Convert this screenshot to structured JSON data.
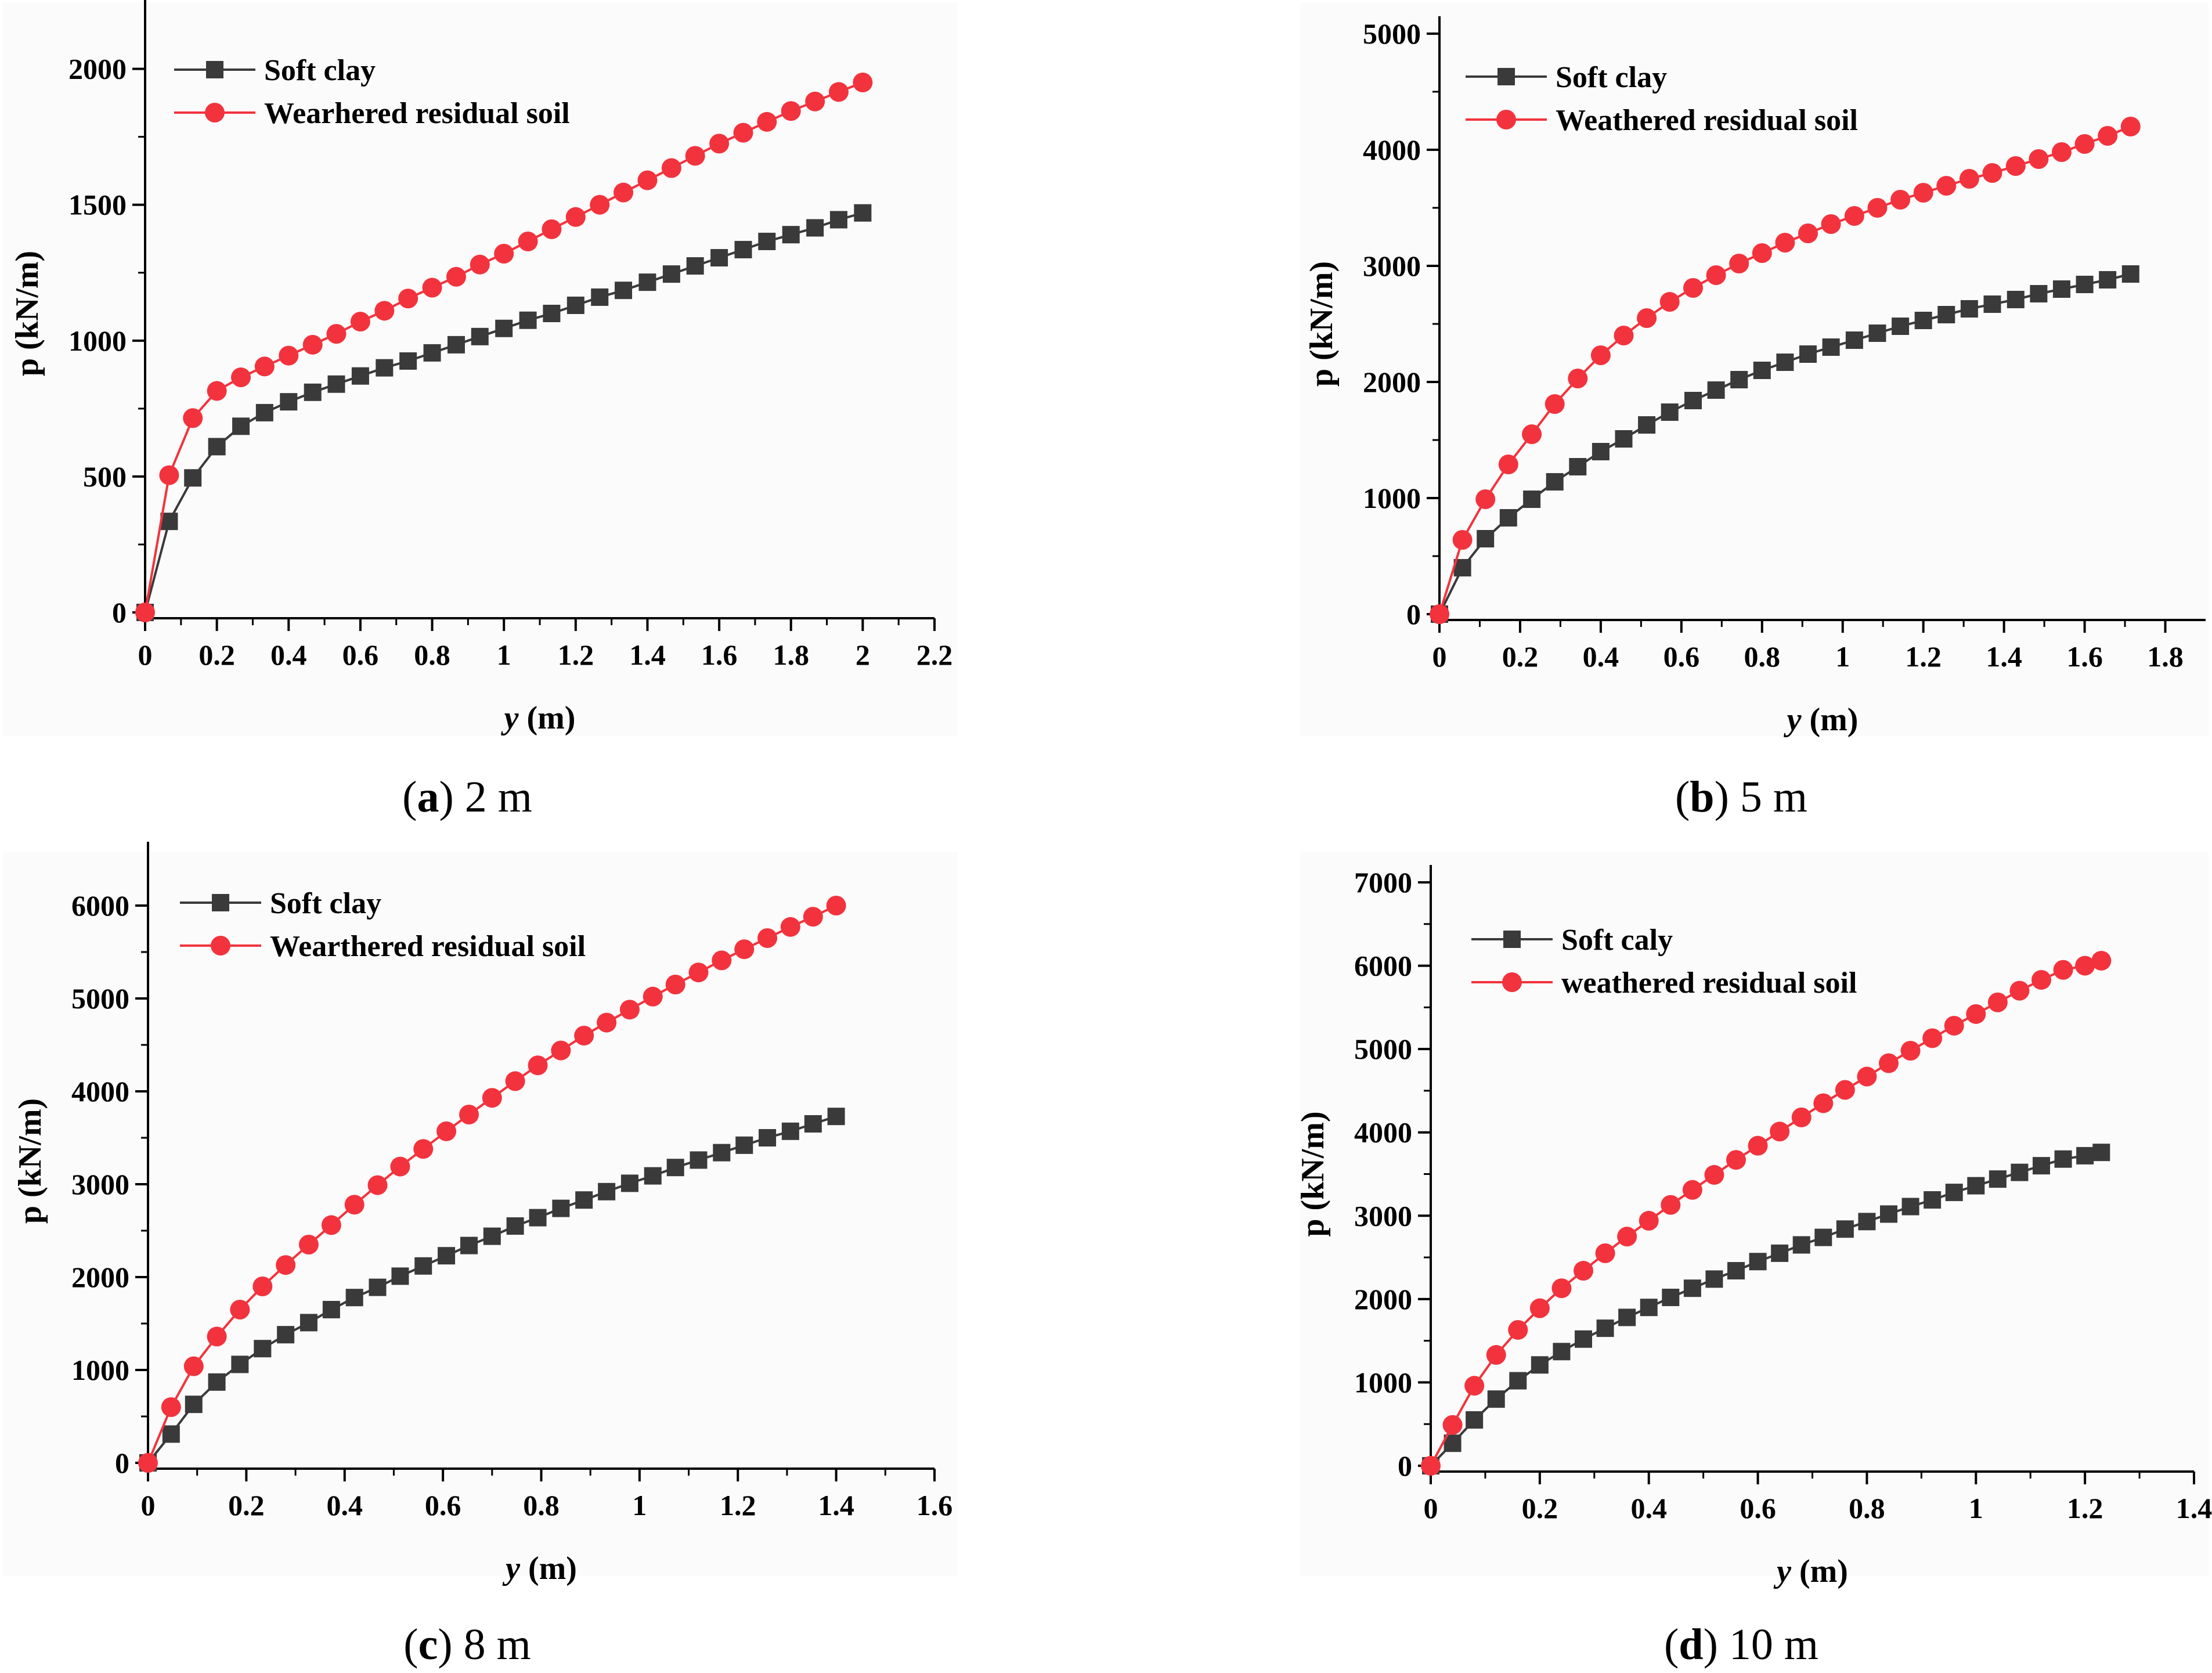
{
  "colors": {
    "series1": "#3a3a3a",
    "series2": "#f2333d",
    "axis": "#000000",
    "background": "#ffffff",
    "panel_bg": "#fbfbfb"
  },
  "chart_data": [
    {
      "type": "line",
      "caption": {
        "letter": "a",
        "text": "2 m"
      },
      "xlabel": "y (m)",
      "ylabel": "p (kN/m)",
      "xlim": [
        0,
        2.2
      ],
      "ylim": [
        0,
        2200
      ],
      "xticks": [
        0,
        0.2,
        0.4,
        0.6,
        0.8,
        1,
        1.2,
        1.4,
        1.6,
        1.8,
        2,
        2.2
      ],
      "yticks": [
        0,
        500,
        1000,
        1500,
        2000
      ],
      "legend": "top-left",
      "series": [
        {
          "name": "Soft clay",
          "marker": "square",
          "color": "#3a3a3a",
          "x": [
            0,
            0.067,
            0.133,
            0.2,
            0.267,
            0.333,
            0.4,
            0.467,
            0.533,
            0.6,
            0.667,
            0.733,
            0.8,
            0.867,
            0.933,
            1.0,
            1.067,
            1.133,
            1.2,
            1.267,
            1.333,
            1.4,
            1.467,
            1.533,
            1.6,
            1.667,
            1.733,
            1.8,
            1.867,
            1.933,
            2.0
          ],
          "y": [
            0,
            335,
            495,
            610,
            685,
            735,
            775,
            810,
            840,
            870,
            900,
            925,
            955,
            985,
            1015,
            1045,
            1075,
            1100,
            1130,
            1160,
            1185,
            1215,
            1245,
            1275,
            1305,
            1335,
            1365,
            1390,
            1415,
            1445,
            1470
          ]
        },
        {
          "name": "Wearhered residual soil",
          "marker": "circle",
          "color": "#f2333d",
          "x": [
            0,
            0.067,
            0.133,
            0.2,
            0.267,
            0.333,
            0.4,
            0.467,
            0.533,
            0.6,
            0.667,
            0.733,
            0.8,
            0.867,
            0.933,
            1.0,
            1.067,
            1.133,
            1.2,
            1.267,
            1.333,
            1.4,
            1.467,
            1.533,
            1.6,
            1.667,
            1.733,
            1.8,
            1.867,
            1.933,
            2.0
          ],
          "y": [
            0,
            505,
            715,
            815,
            865,
            905,
            945,
            985,
            1025,
            1070,
            1110,
            1155,
            1195,
            1235,
            1280,
            1320,
            1365,
            1410,
            1455,
            1500,
            1545,
            1590,
            1635,
            1680,
            1725,
            1765,
            1805,
            1845,
            1880,
            1915,
            1950
          ]
        }
      ]
    },
    {
      "type": "line",
      "caption": {
        "letter": "b",
        "text": "5 m"
      },
      "xlabel": "y (m)",
      "ylabel": "p (kN/m)",
      "xlim": [
        0,
        1.9
      ],
      "ylim": [
        0,
        5000
      ],
      "xticks": [
        0,
        0.2,
        0.4,
        0.6,
        0.8,
        1,
        1.2,
        1.4,
        1.6,
        1.8
      ],
      "yticks": [
        0,
        1000,
        2000,
        3000,
        4000,
        5000
      ],
      "legend": "top-left",
      "series": [
        {
          "name": "Soft clay",
          "marker": "square",
          "color": "#3a3a3a",
          "x": [
            0,
            0.057,
            0.114,
            0.171,
            0.229,
            0.286,
            0.343,
            0.4,
            0.457,
            0.514,
            0.571,
            0.629,
            0.686,
            0.743,
            0.8,
            0.857,
            0.914,
            0.971,
            1.029,
            1.086,
            1.143,
            1.2,
            1.257,
            1.314,
            1.371,
            1.429,
            1.486,
            1.543,
            1.6,
            1.657,
            1.714
          ],
          "y": [
            0,
            400,
            650,
            830,
            990,
            1140,
            1270,
            1400,
            1510,
            1630,
            1740,
            1840,
            1930,
            2020,
            2100,
            2170,
            2240,
            2300,
            2360,
            2420,
            2480,
            2530,
            2580,
            2630,
            2670,
            2710,
            2760,
            2800,
            2840,
            2880,
            2930
          ]
        },
        {
          "name": "Weathered residual soil",
          "marker": "circle",
          "color": "#f2333d",
          "x": [
            0,
            0.057,
            0.114,
            0.171,
            0.229,
            0.286,
            0.343,
            0.4,
            0.457,
            0.514,
            0.571,
            0.629,
            0.686,
            0.743,
            0.8,
            0.857,
            0.914,
            0.971,
            1.029,
            1.086,
            1.143,
            1.2,
            1.257,
            1.314,
            1.371,
            1.429,
            1.486,
            1.543,
            1.6,
            1.657,
            1.714
          ],
          "y": [
            0,
            640,
            990,
            1290,
            1550,
            1810,
            2030,
            2230,
            2400,
            2550,
            2690,
            2810,
            2920,
            3020,
            3110,
            3200,
            3280,
            3360,
            3430,
            3500,
            3570,
            3630,
            3690,
            3750,
            3800,
            3860,
            3920,
            3980,
            4050,
            4120,
            4200
          ]
        }
      ]
    },
    {
      "type": "line",
      "caption": {
        "letter": "c",
        "text": "8 m"
      },
      "xlabel": "y (m)",
      "ylabel": "p (kN/m)",
      "xlim": [
        0,
        1.6
      ],
      "ylim": [
        0,
        6500
      ],
      "xticks": [
        0,
        0.2,
        0.4,
        0.6,
        0.8,
        1,
        1.2,
        1.4,
        1.6
      ],
      "yticks": [
        0,
        1000,
        2000,
        3000,
        4000,
        5000,
        6000
      ],
      "legend": "top-left",
      "series": [
        {
          "name": "Soft clay",
          "marker": "square",
          "color": "#3a3a3a",
          "x": [
            0,
            0.047,
            0.093,
            0.14,
            0.187,
            0.233,
            0.28,
            0.327,
            0.373,
            0.42,
            0.467,
            0.513,
            0.56,
            0.607,
            0.653,
            0.7,
            0.747,
            0.793,
            0.84,
            0.887,
            0.933,
            0.98,
            1.027,
            1.073,
            1.12,
            1.167,
            1.213,
            1.26,
            1.307,
            1.353,
            1.4
          ],
          "y": [
            0,
            310,
            630,
            870,
            1060,
            1230,
            1380,
            1510,
            1650,
            1780,
            1890,
            2010,
            2120,
            2230,
            2340,
            2440,
            2550,
            2640,
            2740,
            2830,
            2920,
            3010,
            3090,
            3180,
            3260,
            3340,
            3420,
            3500,
            3570,
            3650,
            3730
          ]
        },
        {
          "name": "Wearthered residual soil",
          "marker": "circle",
          "color": "#f2333d",
          "x": [
            0,
            0.047,
            0.093,
            0.14,
            0.187,
            0.233,
            0.28,
            0.327,
            0.373,
            0.42,
            0.467,
            0.513,
            0.56,
            0.607,
            0.653,
            0.7,
            0.747,
            0.793,
            0.84,
            0.887,
            0.933,
            0.98,
            1.027,
            1.073,
            1.12,
            1.167,
            1.213,
            1.26,
            1.307,
            1.353,
            1.4
          ],
          "y": [
            0,
            600,
            1040,
            1360,
            1650,
            1900,
            2130,
            2350,
            2560,
            2780,
            2990,
            3190,
            3380,
            3570,
            3750,
            3930,
            4110,
            4280,
            4440,
            4600,
            4740,
            4880,
            5020,
            5150,
            5280,
            5410,
            5530,
            5650,
            5770,
            5880,
            6000
          ]
        }
      ]
    },
    {
      "type": "line",
      "caption": {
        "letter": "d",
        "text": "10 m"
      },
      "xlabel": "y (m)",
      "ylabel": "p (kN/m)",
      "xlim": [
        0,
        1.4
      ],
      "ylim": [
        0,
        7000
      ],
      "xticks": [
        0,
        0.2,
        0.4,
        0.6,
        0.8,
        1,
        1.2,
        1.4
      ],
      "yticks": [
        0,
        1000,
        2000,
        3000,
        4000,
        5000,
        6000,
        7000
      ],
      "legend": "top-left",
      "series": [
        {
          "name": "Soft caly",
          "marker": "square",
          "color": "#3a3a3a",
          "x": [
            0,
            0.04,
            0.08,
            0.12,
            0.16,
            0.2,
            0.24,
            0.28,
            0.32,
            0.36,
            0.4,
            0.44,
            0.48,
            0.52,
            0.56,
            0.6,
            0.64,
            0.68,
            0.72,
            0.76,
            0.8,
            0.84,
            0.88,
            0.92,
            0.96,
            1.0,
            1.04,
            1.08,
            1.12,
            1.16,
            1.2,
            1.23
          ],
          "y": [
            0,
            270,
            550,
            800,
            1020,
            1210,
            1370,
            1520,
            1650,
            1780,
            1900,
            2020,
            2130,
            2240,
            2340,
            2450,
            2550,
            2650,
            2740,
            2840,
            2930,
            3020,
            3110,
            3190,
            3280,
            3360,
            3440,
            3520,
            3600,
            3680,
            3720,
            3760
          ]
        },
        {
          "name": "weathered residual soil",
          "marker": "circle",
          "color": "#f2333d",
          "x": [
            0,
            0.04,
            0.08,
            0.12,
            0.16,
            0.2,
            0.24,
            0.28,
            0.32,
            0.36,
            0.4,
            0.44,
            0.48,
            0.52,
            0.56,
            0.6,
            0.64,
            0.68,
            0.72,
            0.76,
            0.8,
            0.84,
            0.88,
            0.92,
            0.96,
            1.0,
            1.04,
            1.08,
            1.12,
            1.16,
            1.2,
            1.23
          ],
          "y": [
            0,
            490,
            960,
            1330,
            1630,
            1890,
            2130,
            2340,
            2550,
            2750,
            2940,
            3130,
            3310,
            3490,
            3670,
            3840,
            4010,
            4180,
            4350,
            4510,
            4670,
            4830,
            4980,
            5130,
            5280,
            5420,
            5560,
            5700,
            5830,
            5950,
            6000,
            6060
          ]
        }
      ]
    }
  ]
}
